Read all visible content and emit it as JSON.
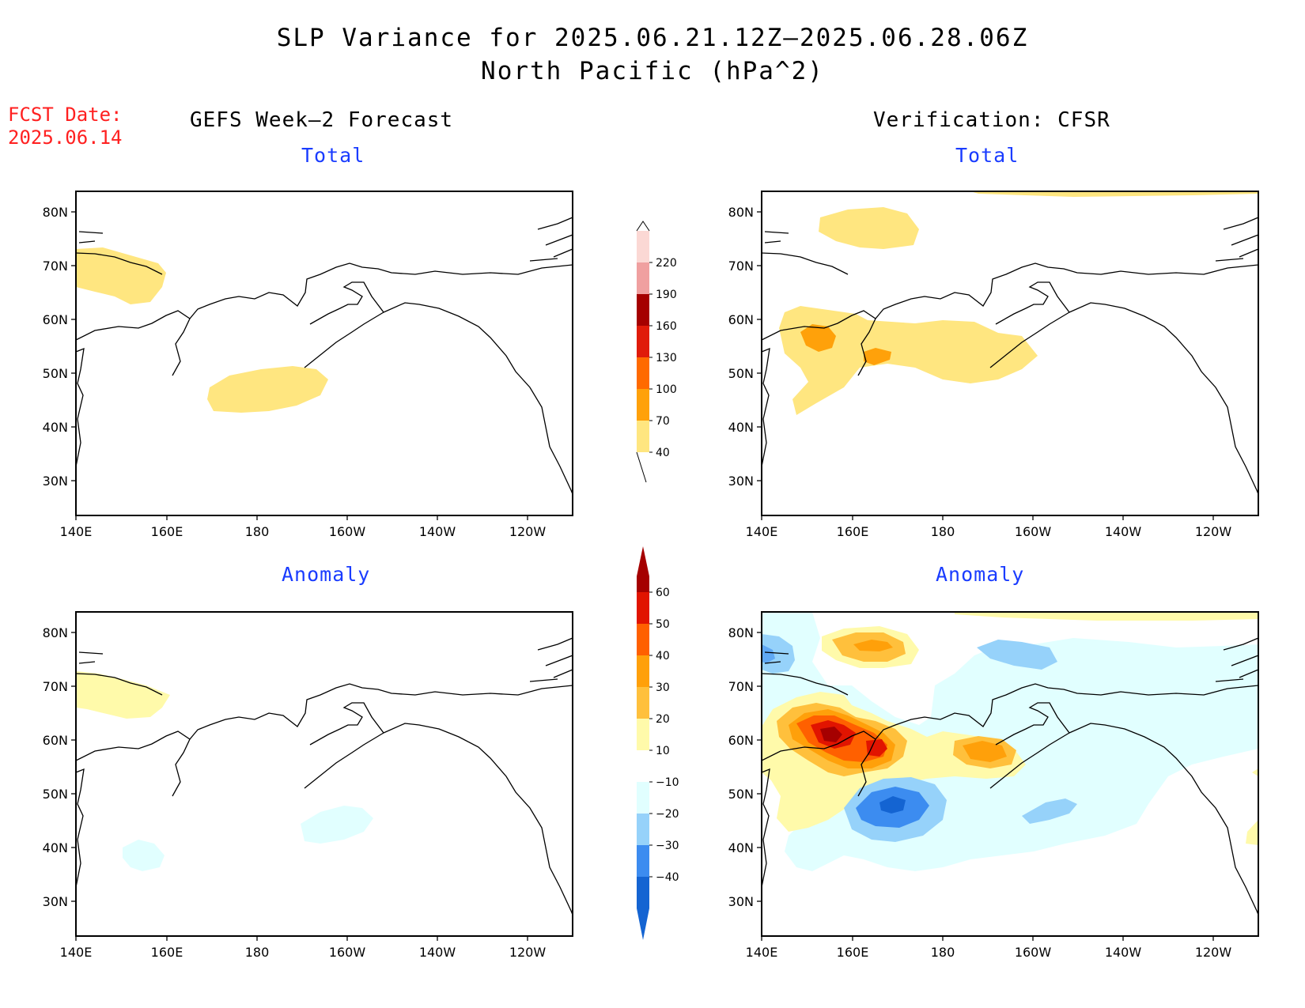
{
  "header": {
    "title_line1": "SLP Variance for 2025.06.21.12Z–2025.06.28.06Z",
    "title_line2": "North Pacific (hPa^2)",
    "fcst_label": "FCST Date:",
    "fcst_date": "2025.06.14",
    "left_column_title": "GEFS Week–2 Forecast",
    "right_column_title": "Verification: CFSR"
  },
  "axes": {
    "lat_labels": [
      "80N",
      "70N",
      "60N",
      "50N",
      "40N",
      "30N"
    ],
    "lon_labels": [
      "140E",
      "160E",
      "180",
      "160W",
      "140W",
      "120W"
    ]
  },
  "panels": [
    {
      "id": "gefs-total",
      "title": "Total",
      "field": "total",
      "source": "GEFS Week-2 Forecast"
    },
    {
      "id": "cfsr-total",
      "title": "Total",
      "field": "total",
      "source": "Verification: CFSR"
    },
    {
      "id": "gefs-anomaly",
      "title": "Anomaly",
      "field": "anomaly",
      "source": "GEFS Week-2 Forecast"
    },
    {
      "id": "cfsr-anomaly",
      "title": "Anomaly",
      "field": "anomaly",
      "source": "Verification: CFSR"
    }
  ],
  "colorbars": {
    "total": {
      "levels": [
        "40",
        "70",
        "100",
        "130",
        "160",
        "190",
        "220"
      ],
      "colors": [
        "#ffe680",
        "#ffa10a",
        "#ff6a00",
        "#e01b0a",
        "#a50000",
        "#f0a0a0",
        "#fbd8d4"
      ]
    },
    "anomaly": {
      "levels": [
        "-40",
        "-30",
        "-20",
        "-10",
        "10",
        "20",
        "30",
        "40",
        "50",
        "60"
      ],
      "colors": [
        "#1464d2",
        "#3c8cf0",
        "#96d2fa",
        "#e1ffff",
        "#ffffff",
        "#fffaaa",
        "#ffc03c",
        "#ffa00a",
        "#ff6000",
        "#e11400",
        "#a50000"
      ]
    }
  }
}
